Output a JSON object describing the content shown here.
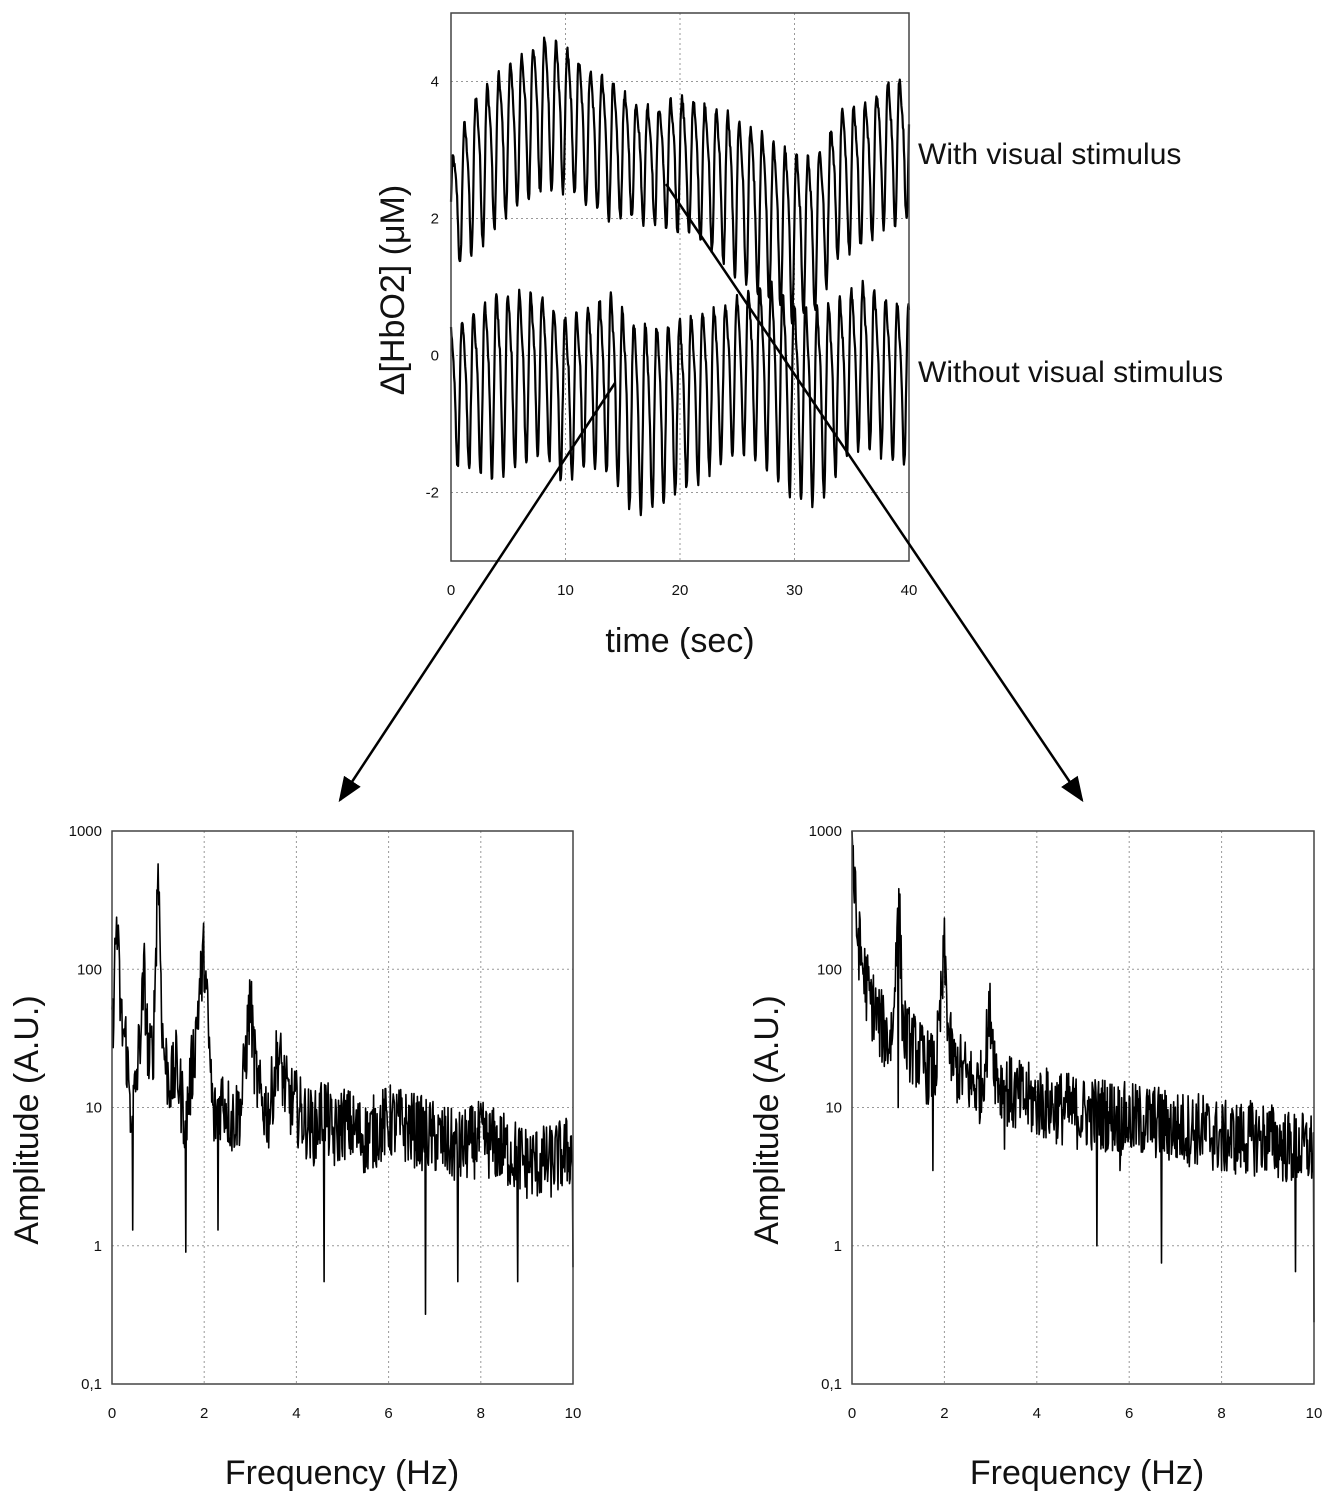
{
  "chart_data": [
    {
      "type": "line",
      "xlabel": "time (sec)",
      "ylabel": "Δ[HbO2] (μM)",
      "xlim": [
        0,
        40
      ],
      "ylim": [
        -3,
        5
      ],
      "xticks": [
        0,
        10,
        20,
        30,
        40
      ],
      "yticks": [
        -2,
        0,
        2,
        4
      ],
      "grid": true,
      "annotations": [
        "With visual stimulus",
        "Without visual stimulus"
      ],
      "series": [
        {
          "name": "With visual stimulus",
          "x": [
            0,
            2,
            4,
            6,
            8,
            10,
            12,
            14,
            16,
            18,
            20,
            22,
            24,
            26,
            28,
            30,
            32,
            34,
            36,
            38,
            40
          ],
          "y_upper": [
            3.0,
            4.0,
            4.3,
            4.6,
            4.9,
            4.7,
            4.4,
            4.2,
            3.9,
            3.8,
            4.0,
            3.9,
            3.8,
            3.6,
            3.4,
            3.2,
            3.2,
            3.8,
            3.9,
            4.2,
            4.3
          ],
          "y_lower": [
            1.2,
            1.5,
            1.9,
            2.2,
            2.4,
            2.4,
            2.2,
            2.0,
            2.0,
            1.9,
            1.8,
            1.7,
            1.3,
            1.0,
            0.8,
            0.5,
            0.7,
            1.5,
            1.6,
            1.9,
            2.0
          ],
          "period_sec": 1.0
        },
        {
          "name": "Without visual stimulus",
          "x": [
            0,
            2,
            4,
            6,
            8,
            10,
            12,
            14,
            16,
            18,
            20,
            22,
            24,
            26,
            28,
            30,
            32,
            34,
            36,
            38,
            40
          ],
          "y_upper": [
            0.6,
            0.9,
            1.2,
            1.2,
            1.1,
            0.8,
            1.0,
            1.2,
            0.8,
            0.7,
            0.8,
            0.9,
            1.0,
            1.2,
            1.4,
            1.1,
            1.0,
            1.1,
            1.3,
            1.1,
            1.0
          ],
          "y_lower": [
            -1.6,
            -1.7,
            -1.8,
            -1.6,
            -1.4,
            -1.9,
            -1.6,
            -1.8,
            -2.3,
            -2.2,
            -2.0,
            -1.8,
            -1.5,
            -1.4,
            -1.7,
            -2.1,
            -2.2,
            -1.6,
            -1.3,
            -1.5,
            -1.6
          ],
          "period_sec": 1.0
        }
      ]
    },
    {
      "type": "line",
      "xlabel": "Frequency (Hz)",
      "ylabel": "Amplitude (A.U.)",
      "xlim": [
        0,
        10
      ],
      "ylim": [
        0.1,
        1000
      ],
      "yscale": "log",
      "xticks": [
        0,
        2,
        4,
        6,
        8,
        10
      ],
      "ytick_labels": [
        "0,1",
        "1",
        "10",
        "100",
        "1000"
      ],
      "grid": true,
      "series": [
        {
          "x": [
            0,
            0.1,
            0.2,
            0.3,
            0.4,
            0.5,
            0.6,
            0.7,
            0.8,
            0.9,
            1.0,
            1.1,
            1.2,
            1.3,
            1.4,
            1.5,
            1.6,
            1.7,
            1.8,
            1.9,
            2.0,
            2.1,
            2.2,
            2.4,
            2.6,
            2.8,
            3.0,
            3.1,
            3.2,
            3.4,
            3.6,
            3.8,
            4.0,
            4.2,
            4.4,
            4.6,
            4.8,
            5.0,
            5.5,
            6.0,
            6.5,
            7.0,
            7.5,
            8.0,
            8.5,
            9.0,
            9.5,
            10.0
          ],
          "y": [
            30,
            230,
            40,
            30,
            10,
            12,
            30,
            90,
            20,
            30,
            600,
            30,
            18,
            15,
            20,
            12,
            8,
            15,
            30,
            70,
            130,
            30,
            8,
            12,
            8,
            10,
            60,
            20,
            12,
            9,
            25,
            12,
            10,
            8,
            7,
            10,
            6,
            8,
            6,
            8,
            7,
            6,
            5,
            6,
            5,
            4,
            4,
            5
          ],
          "dips": [
            [
              0.45,
              1.3
            ],
            [
              1.6,
              0.9
            ],
            [
              2.3,
              1.3
            ],
            [
              4.6,
              0.55
            ],
            [
              6.8,
              0.32
            ],
            [
              7.5,
              0.55
            ],
            [
              8.8,
              0.55
            ],
            [
              10.0,
              0.7
            ]
          ]
        }
      ]
    },
    {
      "type": "line",
      "xlabel": "Frequency (Hz)",
      "ylabel": "Amplitude (A.U.)",
      "xlim": [
        0,
        10
      ],
      "ylim": [
        0.1,
        1000
      ],
      "yscale": "log",
      "xticks": [
        0,
        2,
        4,
        6,
        8,
        10
      ],
      "ytick_labels": [
        "0,1",
        "1",
        "10",
        "100",
        "1000"
      ],
      "grid": true,
      "series": [
        {
          "x": [
            0,
            0.05,
            0.1,
            0.2,
            0.3,
            0.4,
            0.5,
            0.6,
            0.7,
            0.8,
            0.9,
            1.0,
            1.1,
            1.2,
            1.4,
            1.6,
            1.8,
            1.9,
            2.0,
            2.1,
            2.2,
            2.4,
            2.6,
            2.8,
            3.0,
            3.1,
            3.2,
            3.5,
            4.0,
            4.5,
            5.0,
            5.5,
            6.0,
            6.5,
            7.0,
            7.5,
            8.0,
            8.5,
            9.0,
            9.5,
            10.0
          ],
          "y": [
            1000,
            400,
            200,
            120,
            80,
            60,
            50,
            40,
            35,
            30,
            40,
            500,
            40,
            30,
            25,
            20,
            18,
            40,
            130,
            30,
            20,
            18,
            15,
            14,
            50,
            20,
            15,
            12,
            11,
            10,
            9,
            9,
            8,
            8,
            7,
            7,
            6,
            6,
            6,
            5,
            5
          ],
          "dips": [
            [
              1.0,
              10
            ],
            [
              1.75,
              3.5
            ],
            [
              3.3,
              5.0
            ],
            [
              5.3,
              1.0
            ],
            [
              5.8,
              3.5
            ],
            [
              6.7,
              0.75
            ],
            [
              8.0,
              3.5
            ],
            [
              9.6,
              0.65
            ],
            [
              10.0,
              0.28
            ]
          ]
        }
      ]
    }
  ]
}
